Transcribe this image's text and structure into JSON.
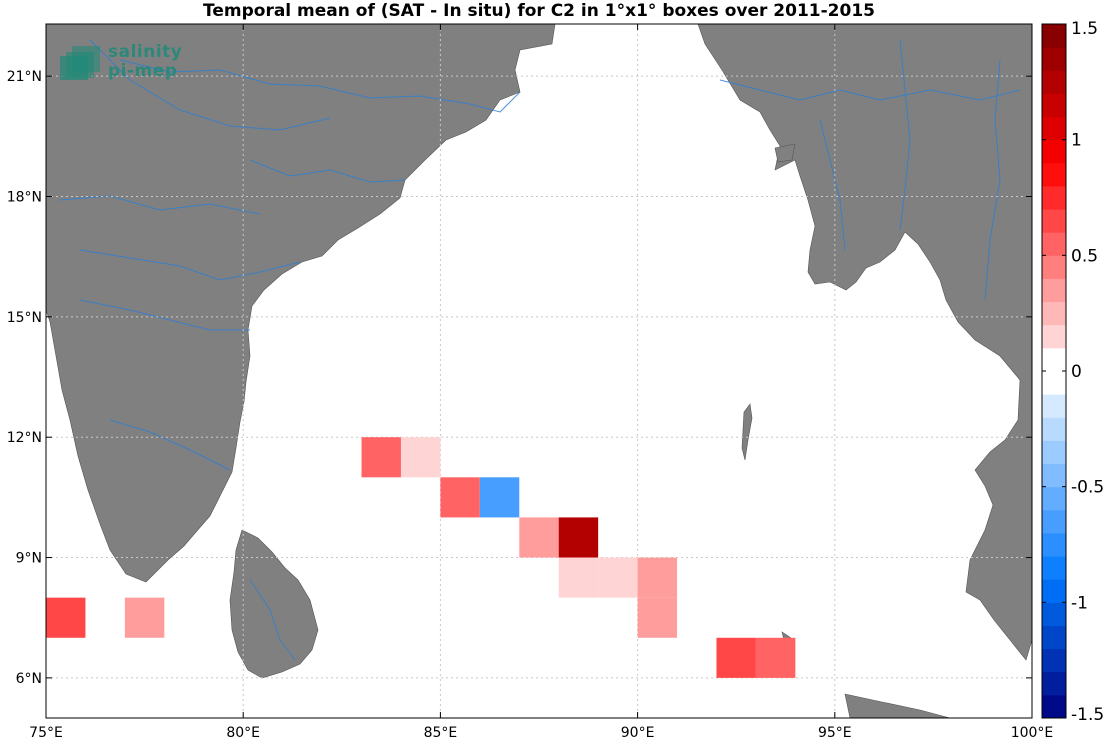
{
  "title": "Temporal mean of (SAT - In situ) for C2 in 1°x1° boxes over 2011-2015",
  "logo": {
    "line1": "salinity",
    "line2": "pi-mep"
  },
  "colors": {
    "land": "#808080",
    "rivers": "#2f7fd0",
    "ocean": "#ffffff",
    "grid": "#c8c8c8"
  },
  "chart_data": {
    "type": "heatmap",
    "xlim": [
      75,
      100
    ],
    "ylim": [
      5,
      22.3
    ],
    "x_ticks": [
      {
        "value": 75,
        "label": "75°E"
      },
      {
        "value": 80,
        "label": "80°E"
      },
      {
        "value": 85,
        "label": "85°E"
      },
      {
        "value": 90,
        "label": "90°E"
      },
      {
        "value": 95,
        "label": "95°E"
      },
      {
        "value": 100,
        "label": "100°E"
      }
    ],
    "y_ticks": [
      {
        "value": 6,
        "label": "6°N"
      },
      {
        "value": 9,
        "label": "9°N"
      },
      {
        "value": 12,
        "label": "12°N"
      },
      {
        "value": 15,
        "label": "15°N"
      },
      {
        "value": 18,
        "label": "18°N"
      },
      {
        "value": 21,
        "label": "21°N"
      }
    ],
    "grid": true,
    "cell_size_deg": 1,
    "cells": [
      {
        "lon": 75,
        "lat": 7,
        "value": 0.65
      },
      {
        "lon": 77,
        "lat": 7,
        "value": 0.3
      },
      {
        "lon": 83,
        "lat": 11,
        "value": 0.5
      },
      {
        "lon": 84,
        "lat": 11,
        "value": 0.15
      },
      {
        "lon": 85,
        "lat": 10,
        "value": 0.5
      },
      {
        "lon": 86,
        "lat": 10,
        "value": -0.65
      },
      {
        "lon": 87,
        "lat": 9,
        "value": 0.3
      },
      {
        "lon": 88,
        "lat": 9,
        "value": 1.2
      },
      {
        "lon": 88,
        "lat": 8,
        "value": 0.15
      },
      {
        "lon": 89,
        "lat": 8,
        "value": 0.15
      },
      {
        "lon": 90,
        "lat": 8,
        "value": 0.3
      },
      {
        "lon": 90,
        "lat": 7,
        "value": 0.3
      },
      {
        "lon": 92,
        "lat": 6,
        "value": 0.65
      },
      {
        "lon": 93,
        "lat": 6,
        "value": 0.5
      }
    ],
    "colorbar": {
      "min": -1.5,
      "max": 1.5,
      "levels": 30,
      "ticks": [
        {
          "value": 1.5,
          "label": "1.5"
        },
        {
          "value": 1,
          "label": "1"
        },
        {
          "value": 0.5,
          "label": "0.5"
        },
        {
          "value": 0,
          "label": "0"
        },
        {
          "value": -0.5,
          "label": "-0.5"
        },
        {
          "value": -1,
          "label": "-1"
        },
        {
          "value": -1.5,
          "label": "-1.5"
        }
      ]
    }
  }
}
